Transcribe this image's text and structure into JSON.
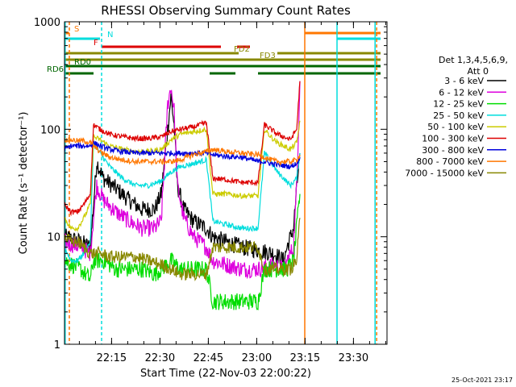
{
  "chart_data": {
    "type": "line",
    "title": "RHESSI Observing Summary Count Rates",
    "xlabel": "Start Time (22-Nov-03 22:00:22)",
    "ylabel": "Count Rate (s⁻¹ detector⁻¹)",
    "yscale": "log",
    "ylim": [
      1,
      1000
    ],
    "xlim_minutes_after_22_00": [
      0,
      100
    ],
    "x_ticks": [
      {
        "t": 14.6,
        "label": "22:15"
      },
      {
        "t": 29.6,
        "label": "22:30"
      },
      {
        "t": 44.6,
        "label": "22:45"
      },
      {
        "t": 59.6,
        "label": "23:00"
      },
      {
        "t": 74.6,
        "label": "23:15"
      },
      {
        "t": 89.6,
        "label": "23:30"
      }
    ],
    "y_ticks": [
      {
        "v": 1,
        "label": "1"
      },
      {
        "v": 10,
        "label": "10"
      },
      {
        "v": 100,
        "label": "100"
      },
      {
        "v": 1000,
        "label": "1000"
      }
    ],
    "legend_header": [
      "Det 1,3,4,5,6,9,",
      "Att 0"
    ],
    "legend_position": "right",
    "series": [
      {
        "name": "3 - 6 keV",
        "color": "#000000",
        "points": [
          [
            0,
            10
          ],
          [
            5,
            9
          ],
          [
            8,
            8
          ],
          [
            9,
            20
          ],
          [
            10,
            50
          ],
          [
            12,
            35
          ],
          [
            16,
            28
          ],
          [
            20,
            22
          ],
          [
            24,
            18
          ],
          [
            28,
            18
          ],
          [
            30,
            25
          ],
          [
            32,
            100
          ],
          [
            33,
            200
          ],
          [
            34,
            110
          ],
          [
            35,
            30
          ],
          [
            37,
            18
          ],
          [
            40,
            14
          ],
          [
            44,
            12
          ],
          [
            46,
            10
          ],
          [
            50,
            9
          ],
          [
            55,
            8
          ],
          [
            60,
            7.5
          ],
          [
            65,
            7
          ],
          [
            68,
            6
          ],
          [
            69,
            8
          ],
          [
            71,
            12
          ],
          [
            72,
            28
          ],
          [
            73,
            60
          ]
        ]
      },
      {
        "name": "6 - 12 keV",
        "color": "#dd00dd",
        "points": [
          [
            0,
            9
          ],
          [
            5,
            8
          ],
          [
            8,
            7
          ],
          [
            9,
            15
          ],
          [
            10,
            30
          ],
          [
            12,
            22
          ],
          [
            16,
            17
          ],
          [
            20,
            14
          ],
          [
            24,
            12
          ],
          [
            28,
            12
          ],
          [
            30,
            14
          ],
          [
            32,
            170
          ],
          [
            33,
            250
          ],
          [
            34,
            150
          ],
          [
            35,
            30
          ],
          [
            37,
            15
          ],
          [
            40,
            10
          ],
          [
            44,
            8
          ],
          [
            46,
            6
          ],
          [
            50,
            5.5
          ],
          [
            55,
            5
          ],
          [
            60,
            5
          ],
          [
            65,
            5.5
          ],
          [
            68,
            5
          ],
          [
            69,
            6
          ],
          [
            71,
            8
          ],
          [
            72,
            30
          ],
          [
            73,
            280
          ]
        ]
      },
      {
        "name": "12 - 25 keV",
        "color": "#00dd00",
        "points": [
          [
            0,
            6
          ],
          [
            5,
            5
          ],
          [
            8,
            4
          ],
          [
            9,
            6
          ],
          [
            12,
            6
          ],
          [
            16,
            5
          ],
          [
            20,
            5
          ],
          [
            24,
            5
          ],
          [
            28,
            4.5
          ],
          [
            30,
            5
          ],
          [
            33,
            6
          ],
          [
            36,
            5
          ],
          [
            40,
            5
          ],
          [
            44,
            5
          ],
          [
            46,
            2.5
          ],
          [
            50,
            2.5
          ],
          [
            55,
            2.5
          ],
          [
            60,
            2.5
          ],
          [
            62,
            5
          ],
          [
            66,
            5
          ],
          [
            69,
            5
          ],
          [
            71,
            6
          ],
          [
            73,
            25
          ]
        ]
      },
      {
        "name": "25 - 50 keV",
        "color": "#00dddd",
        "points": [
          [
            0,
            8
          ],
          [
            2,
            6
          ],
          [
            4,
            6
          ],
          [
            6,
            7
          ],
          [
            8,
            9
          ],
          [
            9,
            75
          ],
          [
            11,
            60
          ],
          [
            14,
            45
          ],
          [
            18,
            35
          ],
          [
            22,
            30
          ],
          [
            26,
            30
          ],
          [
            30,
            33
          ],
          [
            33,
            40
          ],
          [
            36,
            45
          ],
          [
            40,
            48
          ],
          [
            44,
            52
          ],
          [
            46,
            14
          ],
          [
            50,
            13
          ],
          [
            55,
            12
          ],
          [
            60,
            12
          ],
          [
            62,
            60
          ],
          [
            64,
            50
          ],
          [
            66,
            40
          ],
          [
            68,
            35
          ],
          [
            70,
            30
          ],
          [
            72,
            35
          ],
          [
            73,
            60
          ]
        ]
      },
      {
        "name": "50 - 100 keV",
        "color": "#cccc00",
        "points": [
          [
            0,
            15
          ],
          [
            2,
            12
          ],
          [
            4,
            12
          ],
          [
            6,
            15
          ],
          [
            8,
            20
          ],
          [
            9,
            85
          ],
          [
            11,
            80
          ],
          [
            14,
            70
          ],
          [
            18,
            65
          ],
          [
            22,
            62
          ],
          [
            26,
            62
          ],
          [
            30,
            65
          ],
          [
            33,
            80
          ],
          [
            36,
            90
          ],
          [
            40,
            95
          ],
          [
            44,
            100
          ],
          [
            46,
            25
          ],
          [
            50,
            25
          ],
          [
            55,
            24
          ],
          [
            60,
            24
          ],
          [
            62,
            100
          ],
          [
            64,
            85
          ],
          [
            66,
            75
          ],
          [
            68,
            70
          ],
          [
            70,
            65
          ],
          [
            72,
            75
          ],
          [
            73,
            120
          ]
        ]
      },
      {
        "name": "100 - 300 keV",
        "color": "#dd0000",
        "points": [
          [
            0,
            20
          ],
          [
            2,
            17
          ],
          [
            4,
            17
          ],
          [
            6,
            20
          ],
          [
            8,
            25
          ],
          [
            9,
            110
          ],
          [
            11,
            100
          ],
          [
            14,
            90
          ],
          [
            18,
            85
          ],
          [
            22,
            82
          ],
          [
            26,
            82
          ],
          [
            30,
            85
          ],
          [
            33,
            95
          ],
          [
            36,
            100
          ],
          [
            40,
            105
          ],
          [
            44,
            115
          ],
          [
            46,
            35
          ],
          [
            50,
            34
          ],
          [
            55,
            32
          ],
          [
            60,
            32
          ],
          [
            62,
            110
          ],
          [
            64,
            100
          ],
          [
            66,
            90
          ],
          [
            68,
            85
          ],
          [
            70,
            80
          ],
          [
            72,
            100
          ],
          [
            73,
            280
          ]
        ]
      },
      {
        "name": "300 - 800 keV",
        "color": "#0000dd",
        "points": [
          [
            0,
            65
          ],
          [
            2,
            70
          ],
          [
            4,
            70
          ],
          [
            6,
            70
          ],
          [
            8,
            70
          ],
          [
            9,
            75
          ],
          [
            11,
            70
          ],
          [
            14,
            65
          ],
          [
            18,
            62
          ],
          [
            22,
            60
          ],
          [
            26,
            60
          ],
          [
            30,
            60
          ],
          [
            33,
            60
          ],
          [
            36,
            60
          ],
          [
            40,
            60
          ],
          [
            44,
            60
          ],
          [
            46,
            58
          ],
          [
            50,
            56
          ],
          [
            55,
            55
          ],
          [
            60,
            50
          ],
          [
            62,
            50
          ],
          [
            64,
            48
          ],
          [
            66,
            47
          ],
          [
            68,
            46
          ],
          [
            70,
            45
          ],
          [
            72,
            48
          ],
          [
            73,
            55
          ]
        ]
      },
      {
        "name": "800 - 7000 keV",
        "color": "#ff7700",
        "points": [
          [
            0,
            80
          ],
          [
            2,
            80
          ],
          [
            4,
            78
          ],
          [
            6,
            78
          ],
          [
            8,
            75
          ],
          [
            9,
            70
          ],
          [
            11,
            62
          ],
          [
            14,
            55
          ],
          [
            18,
            52
          ],
          [
            22,
            50
          ],
          [
            26,
            50
          ],
          [
            30,
            50
          ],
          [
            33,
            50
          ],
          [
            36,
            52
          ],
          [
            40,
            58
          ],
          [
            44,
            62
          ],
          [
            46,
            65
          ],
          [
            50,
            62
          ],
          [
            55,
            60
          ],
          [
            60,
            58
          ],
          [
            62,
            55
          ],
          [
            64,
            52
          ],
          [
            66,
            50
          ],
          [
            68,
            50
          ],
          [
            70,
            50
          ],
          [
            72,
            52
          ],
          [
            73,
            58
          ]
        ]
      },
      {
        "name": "7000 - 15000 keV",
        "color": "#888800",
        "points": [
          [
            0,
            10
          ],
          [
            2,
            9
          ],
          [
            4,
            9
          ],
          [
            6,
            8
          ],
          [
            8,
            7
          ],
          [
            9,
            7
          ],
          [
            11,
            7
          ],
          [
            14,
            6.5
          ],
          [
            18,
            6.5
          ],
          [
            22,
            6.5
          ],
          [
            26,
            6
          ],
          [
            30,
            5.5
          ],
          [
            33,
            5
          ],
          [
            36,
            4.5
          ],
          [
            40,
            4.5
          ],
          [
            44,
            4.5
          ],
          [
            46,
            8
          ],
          [
            50,
            8
          ],
          [
            55,
            8
          ],
          [
            60,
            8
          ],
          [
            62,
            5
          ],
          [
            64,
            5
          ],
          [
            66,
            5
          ],
          [
            68,
            5
          ],
          [
            70,
            5
          ],
          [
            72,
            6
          ],
          [
            73,
            15
          ]
        ]
      }
    ],
    "flag_bars": [
      {
        "label": "S",
        "color": "#ff7700",
        "row": 0,
        "segments": [
          [
            0,
            1.5
          ]
        ]
      },
      {
        "label": "N",
        "color": "#00dddd",
        "row": 1,
        "segments": [
          [
            0,
            11
          ]
        ]
      },
      {
        "label": "F",
        "color": "#dd0000",
        "row": 2,
        "segments": [
          [
            11.5,
            48.5
          ],
          [
            53.5,
            57.5
          ]
        ]
      },
      {
        "label": "FD2",
        "color": "#888800",
        "row": 3,
        "segments": [
          [
            0,
            54
          ],
          [
            66,
            98
          ]
        ]
      },
      {
        "label": "FD3",
        "color": "#888800",
        "row": 4,
        "segments": [
          [
            0,
            60
          ],
          [
            60,
            98
          ]
        ]
      },
      {
        "label": "RD0",
        "color": "#006600",
        "row": 5,
        "segments": [
          [
            0,
            98
          ]
        ]
      },
      {
        "label": "RD6",
        "color": "#006600",
        "row": 6,
        "segments": [
          [
            0,
            9
          ],
          [
            45,
            53
          ],
          [
            60,
            98
          ]
        ]
      },
      {
        "label": "",
        "color": "#ff7700",
        "row": 0,
        "segments": [
          [
            74.5,
            98
          ]
        ]
      },
      {
        "label": "",
        "color": "#00dddd",
        "row": 1,
        "segments": [
          [
            84.5,
            98
          ]
        ]
      }
    ],
    "vertical_markers": [
      {
        "t": 1.5,
        "color": "#ff7700",
        "dashed": true
      },
      {
        "t": 0.2,
        "color": "#00dddd",
        "dashed": false
      },
      {
        "t": 11.5,
        "color": "#00dddd",
        "dashed": true
      },
      {
        "t": 74.5,
        "color": "#ff7700",
        "dashed": false
      },
      {
        "t": 84.5,
        "color": "#00dddd",
        "dashed": false
      },
      {
        "t": 96.8,
        "color": "#ff7700",
        "dashed": true
      },
      {
        "t": 96.3,
        "color": "#00dddd",
        "dashed": false
      }
    ]
  },
  "footer": {
    "timestamp": "25-Oct-2021 23:17"
  }
}
